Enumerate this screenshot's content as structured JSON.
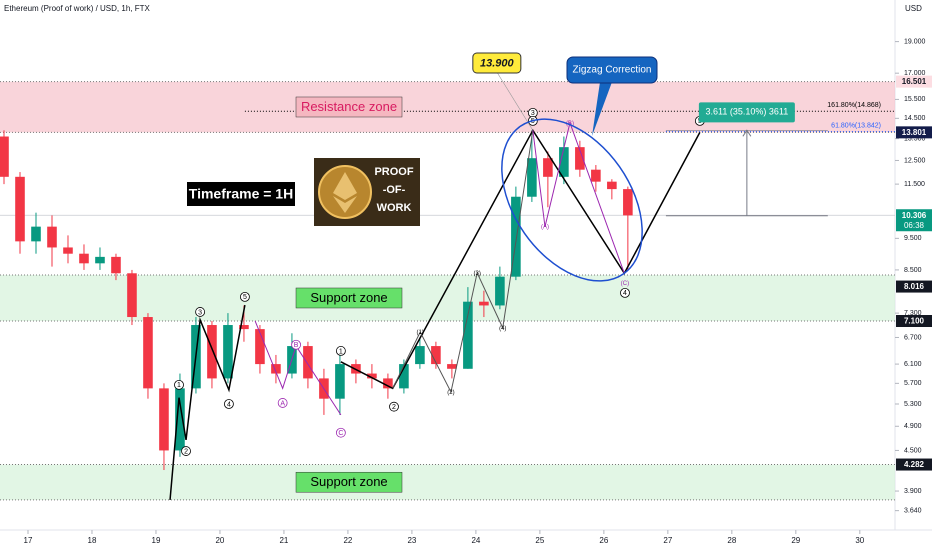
{
  "chart_data": {
    "type": "candlestick",
    "title": "Ethereum (Proof of work) / USD, 1h, FTX",
    "y_axis_label": "USD",
    "log_scale": true,
    "ylim": [
      3.4,
      22
    ],
    "yticks": [
      {
        "value": 19,
        "label": "19.000"
      },
      {
        "value": 17,
        "label": "17.000"
      },
      {
        "value": 15.5,
        "label": "15.500"
      },
      {
        "value": 14.5,
        "label": "14.500"
      },
      {
        "value": 13.5,
        "label": "13.500"
      },
      {
        "value": 12.5,
        "label": "12.500"
      },
      {
        "value": 11.5,
        "label": "11.500"
      },
      {
        "value": 9.5,
        "label": "9.500"
      },
      {
        "value": 8.5,
        "label": "8.500"
      },
      {
        "value": 7.3,
        "label": "7.300"
      },
      {
        "value": 6.7,
        "label": "6.700"
      },
      {
        "value": 6.1,
        "label": "6.100"
      },
      {
        "value": 5.7,
        "label": "5.700"
      },
      {
        "value": 5.3,
        "label": "5.300"
      },
      {
        "value": 4.9,
        "label": "4.900"
      },
      {
        "value": 4.5,
        "label": "4.500"
      },
      {
        "value": 3.9,
        "label": "3.900"
      },
      {
        "value": 3.64,
        "label": "3.640"
      }
    ],
    "xlim": [
      16.5625,
      30.55
    ],
    "xticks": [
      17,
      18,
      19,
      20,
      21,
      22,
      23,
      24,
      25,
      26,
      27,
      28,
      29,
      30
    ],
    "up_color": "#089981",
    "down_color": "#f23645",
    "candles": {
      "x": [
        16.625,
        16.875,
        17.125,
        17.375,
        17.625,
        17.875,
        18.125,
        18.375,
        18.625,
        18.875,
        19.125,
        19.375,
        19.625,
        19.875,
        20.125,
        20.375,
        20.625,
        20.875,
        21.125,
        21.375,
        21.625,
        21.875,
        22.125,
        22.375,
        22.625,
        22.875,
        23.125,
        23.375,
        23.625,
        23.875,
        24.125,
        24.375,
        24.625,
        24.875,
        25.125,
        25.375,
        25.625,
        25.875,
        26.125,
        26.375
      ],
      "open": [
        13.6,
        11.8,
        9.4,
        9.9,
        9.2,
        9.0,
        8.7,
        8.9,
        8.4,
        7.2,
        5.6,
        4.5,
        5.6,
        7.0,
        5.8,
        7.0,
        6.9,
        6.1,
        5.9,
        6.5,
        5.8,
        5.4,
        6.1,
        5.9,
        5.8,
        5.6,
        6.1,
        6.5,
        6.1,
        6.0,
        7.6,
        7.5,
        8.3,
        11.0,
        12.6,
        11.8,
        13.1,
        12.1,
        11.6,
        11.3
      ],
      "high": [
        13.9,
        12.0,
        10.4,
        10.3,
        9.6,
        9.3,
        9.2,
        9.0,
        8.5,
        7.3,
        5.7,
        5.9,
        7.2,
        7.1,
        7.3,
        7.5,
        7.0,
        6.3,
        6.8,
        6.6,
        6.0,
        6.3,
        6.2,
        6.1,
        5.9,
        6.2,
        6.7,
        6.6,
        6.2,
        8.0,
        7.9,
        8.6,
        11.4,
        13.9,
        12.9,
        13.6,
        13.4,
        12.3,
        11.7,
        11.4
      ],
      "low": [
        11.5,
        9.0,
        9.0,
        8.6,
        8.7,
        8.5,
        8.5,
        8.2,
        7.0,
        5.4,
        4.2,
        4.4,
        5.5,
        5.6,
        5.7,
        6.6,
        5.9,
        5.7,
        5.8,
        5.6,
        5.1,
        5.1,
        5.7,
        5.6,
        5.4,
        5.5,
        6.0,
        6.0,
        5.8,
        6.0,
        7.2,
        7.4,
        8.2,
        10.8,
        10.6,
        11.5,
        11.8,
        11.2,
        10.9,
        8.5
      ],
      "close": [
        11.8,
        9.4,
        9.9,
        9.2,
        9.0,
        8.7,
        8.9,
        8.4,
        7.2,
        5.6,
        4.5,
        5.6,
        7.0,
        5.8,
        7.0,
        6.9,
        6.1,
        5.9,
        6.5,
        5.8,
        5.4,
        6.1,
        5.9,
        5.8,
        5.6,
        6.1,
        6.5,
        6.1,
        6.0,
        7.6,
        7.5,
        8.3,
        11.0,
        12.6,
        11.8,
        13.1,
        12.1,
        11.6,
        11.3,
        10.3
      ]
    },
    "zones": [
      {
        "label": "Resistance zone",
        "low": 13.801,
        "high": 16.501,
        "color": "#f7c6cd",
        "label_color": "#f5b7c0",
        "text_color": "#d81b60"
      },
      {
        "label": "Support zone",
        "low": 7.1,
        "high": 8.35,
        "color": "#d8f3dc",
        "label_color": "#66e06a",
        "text_color": "#000000"
      },
      {
        "label": "Support zone",
        "low": 3.78,
        "high": 4.282,
        "color": "#d8f3dc",
        "label_color": "#66e06a",
        "text_color": "#000000"
      }
    ],
    "waves": [
      {
        "color": "#000000",
        "x": [
          19.22,
          19.36,
          19.47,
          19.69,
          20.14,
          20.39
        ],
        "y": [
          3.78,
          5.42,
          4.67,
          7.13,
          5.57,
          7.51
        ]
      },
      {
        "color": "#9c27b0",
        "x": [
          20.55,
          20.98,
          21.19,
          21.89
        ],
        "y": [
          7.1,
          5.6,
          6.5,
          5.1
        ]
      },
      {
        "color": "#000000",
        "x": [
          21.89,
          22.7,
          24.89,
          26.32,
          27.5
        ],
        "y": [
          6.15,
          5.6,
          13.9,
          8.4,
          13.8
        ]
      },
      {
        "color": "#555555",
        "x": [
          22.7,
          23.13,
          23.61,
          24.02,
          24.42,
          24.89
        ],
        "y": [
          5.6,
          6.83,
          5.53,
          8.41,
          6.93,
          13.9
        ]
      },
      {
        "color": "#9c27b0",
        "x": [
          24.89,
          25.08,
          25.47,
          26.32
        ],
        "y": [
          13.9,
          9.9,
          14.27,
          8.4
        ]
      }
    ],
    "annotations": [
      {
        "text": "1",
        "x": 19.36,
        "y": 5.67,
        "style": "circle"
      },
      {
        "text": "2",
        "x": 19.47,
        "y": 4.49,
        "style": "circle"
      },
      {
        "text": "3",
        "x": 19.69,
        "y": 7.33,
        "style": "circle"
      },
      {
        "text": "4",
        "x": 20.14,
        "y": 5.3,
        "style": "circle"
      },
      {
        "text": "5",
        "x": 20.39,
        "y": 7.73,
        "style": "circle"
      },
      {
        "text": "A",
        "x": 20.98,
        "y": 5.32,
        "style": "circle-purple"
      },
      {
        "text": "B",
        "x": 21.19,
        "y": 6.53,
        "style": "circle-purple"
      },
      {
        "text": "C",
        "x": 21.89,
        "y": 4.79,
        "style": "circle-purple"
      },
      {
        "text": "1",
        "x": 21.89,
        "y": 6.39,
        "style": "circle"
      },
      {
        "text": "2",
        "x": 22.72,
        "y": 5.25,
        "style": "circle"
      },
      {
        "text": "(1)",
        "x": 23.13,
        "y": 6.83,
        "style": "plain"
      },
      {
        "text": "(2)",
        "x": 23.61,
        "y": 5.53,
        "style": "plain"
      },
      {
        "text": "(3)",
        "x": 24.02,
        "y": 8.41,
        "style": "plain"
      },
      {
        "text": "(4)",
        "x": 24.42,
        "y": 6.93,
        "style": "plain"
      },
      {
        "text": "3",
        "x": 24.89,
        "y": 14.78,
        "style": "circle"
      },
      {
        "text": "5",
        "x": 24.89,
        "y": 14.37,
        "style": "circle"
      },
      {
        "text": "(A)",
        "x": 25.08,
        "y": 9.9,
        "style": "plain-purple"
      },
      {
        "text": "(B)",
        "x": 25.47,
        "y": 14.27,
        "style": "plain-purple"
      },
      {
        "text": "(C)",
        "x": 26.33,
        "y": 8.12,
        "style": "plain-purple"
      },
      {
        "text": "4",
        "x": 26.33,
        "y": 7.84,
        "style": "circle"
      },
      {
        "text": "5",
        "x": 27.5,
        "y": 14.37,
        "style": "circle"
      }
    ],
    "fib_levels": [
      {
        "label": "161.80%(14.868)",
        "value": 14.868,
        "x_start": 20.39,
        "color": "#000000"
      },
      {
        "label": "61.80%(13.842)",
        "value": 13.842,
        "x_start": 26.97,
        "color": "#2962ff"
      }
    ],
    "measure": {
      "label": "3.611 (35.10%) 3611",
      "from": 10.289,
      "to": 13.9,
      "x_start": 26.97,
      "x_end": 29.5,
      "color": "#22ab94"
    },
    "peak_callout": {
      "value": 13.9,
      "label": "13.900",
      "x": 24.89
    },
    "pattern_callout": "Zigzag Correction",
    "timeframe_note": "Timeframe = 1H",
    "image_text": [
      "PROOF",
      "-OF-",
      "WORK"
    ],
    "current_price": 10.306,
    "countdown": "06:38",
    "price_labels": [
      {
        "value": 16.501,
        "color": "#fcdde2",
        "text_color": "#131722"
      },
      {
        "value": 13.801,
        "color": "#131c4a",
        "text_color": "#ffffff"
      },
      {
        "value": 10.306,
        "color": "#089981",
        "text_color": "#ffffff"
      },
      {
        "value": 8.016,
        "color": "#131722",
        "text_color": "#ffffff"
      },
      {
        "value": {
          "value": 7.1,
          "label": "7.100"
        },
        "color": "#131722",
        "text_color": "#ffffff"
      },
      {
        "value": 4.282,
        "color": "#131722",
        "text_color": "#ffffff"
      }
    ]
  }
}
